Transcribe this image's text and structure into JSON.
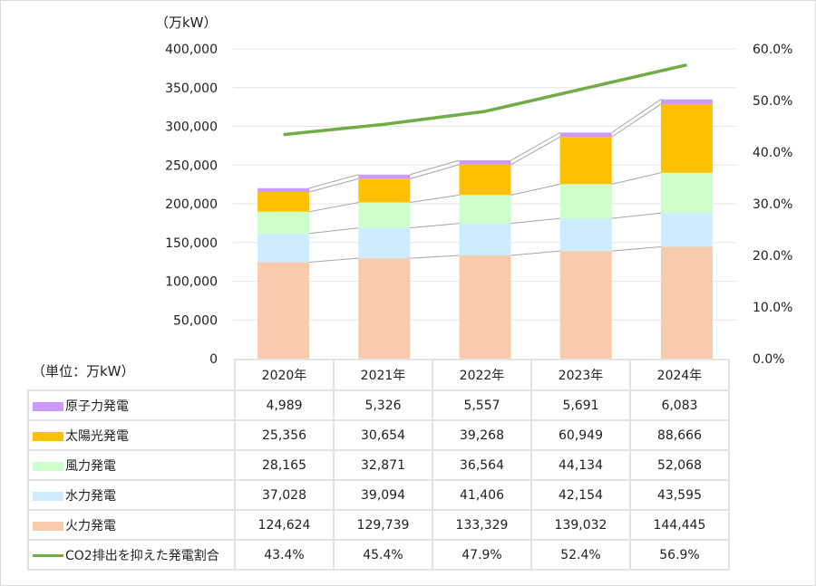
{
  "chart_data": {
    "type": "bar",
    "stacked": true,
    "title": "",
    "left_axis_unit": "（万kW）",
    "table_unit": "（単位：万kW）",
    "categories": [
      "2020年",
      "2021年",
      "2022年",
      "2023年",
      "2024年"
    ],
    "ylim": [
      0,
      400000
    ],
    "yticks": [
      "400,000",
      "350,000",
      "300,000",
      "250,000",
      "200,000",
      "150,000",
      "100,000",
      "50,000",
      "0"
    ],
    "y2lim": [
      0,
      60
    ],
    "y2ticks": [
      "60.0%",
      "50.0%",
      "40.0%",
      "30.0%",
      "20.0%",
      "10.0%",
      "0.0%"
    ],
    "grid": true,
    "legend": "table-bottom",
    "series": [
      {
        "name": "火力発電",
        "type": "bar",
        "color": "#F8CBAD",
        "values": [
          124624,
          129739,
          133329,
          139032,
          144445
        ],
        "labels": [
          "124,624",
          "129,739",
          "133,329",
          "139,032",
          "144,445"
        ]
      },
      {
        "name": "水力発電",
        "type": "bar",
        "color": "#CCECFF",
        "values": [
          37028,
          39094,
          41406,
          42154,
          43595
        ],
        "labels": [
          "37,028",
          "39,094",
          "41,406",
          "42,154",
          "43,595"
        ]
      },
      {
        "name": "風力発電",
        "type": "bar",
        "color": "#CCFFCC",
        "values": [
          28165,
          32871,
          36564,
          44134,
          52068
        ],
        "labels": [
          "28,165",
          "32,871",
          "36,564",
          "44,134",
          "52,068"
        ]
      },
      {
        "name": "太陽光発電",
        "type": "bar",
        "color": "#FFC000",
        "values": [
          25356,
          30654,
          39268,
          60949,
          88666
        ],
        "labels": [
          "25,356",
          "30,654",
          "39,268",
          "60,949",
          "88,666"
        ]
      },
      {
        "name": "原子力発電",
        "type": "bar",
        "color": "#CC99FF",
        "values": [
          4989,
          5326,
          5557,
          5691,
          6083
        ],
        "labels": [
          "4,989",
          "5,326",
          "5,557",
          "5,691",
          "6,083"
        ]
      },
      {
        "name": "CO2排出を抑えた発電割合",
        "type": "line",
        "axis": "right",
        "color": "#70AD47",
        "values": [
          43.4,
          45.4,
          47.9,
          52.4,
          56.9
        ],
        "labels": [
          "43.4%",
          "45.4%",
          "47.9%",
          "52.4%",
          "56.9%"
        ]
      }
    ],
    "table_row_order": [
      4,
      3,
      2,
      1,
      0,
      5
    ]
  }
}
